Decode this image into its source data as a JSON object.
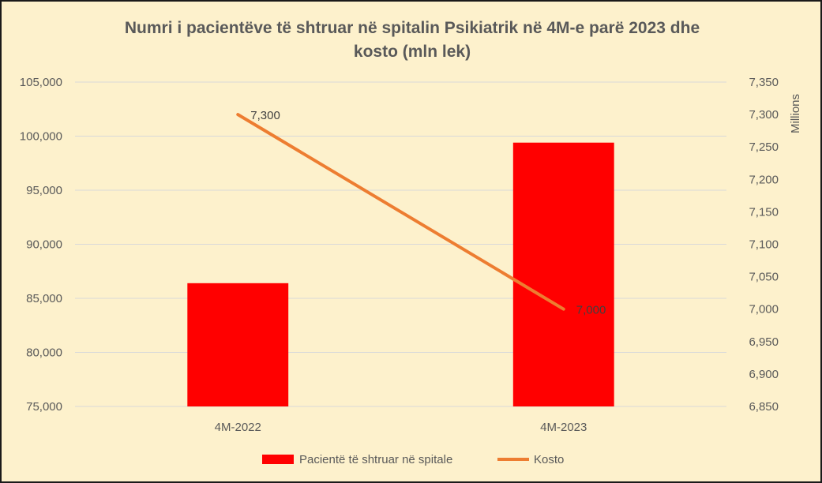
{
  "chart_data": {
    "type": "bar+line",
    "title_lines": [
      "Numri i pacientëve të shtruar në spitalin Psikiatrik në 4M-e parë 2023 dhe",
      "kosto (mln lek)"
    ],
    "categories": [
      "4M-2022",
      "4M-2023"
    ],
    "series": [
      {
        "name": "Pacientë të shtruar në spitale",
        "type": "bar",
        "axis": "left",
        "color": "#ff0000",
        "values": [
          86400,
          99400
        ]
      },
      {
        "name": "Kosto",
        "type": "line",
        "axis": "right",
        "color": "#ed7d31",
        "values": [
          7300,
          7000
        ],
        "data_labels": [
          "7,300",
          "7,000"
        ]
      }
    ],
    "y_left": {
      "min": 75000,
      "max": 105000,
      "ticks": [
        75000,
        80000,
        85000,
        90000,
        95000,
        100000,
        105000
      ],
      "tick_labels": [
        "75,000",
        "80,000",
        "85,000",
        "90,000",
        "95,000",
        "100,000",
        "105,000"
      ]
    },
    "y_right": {
      "min": 6850,
      "max": 7350,
      "label": "Millions",
      "ticks": [
        6850,
        6900,
        6950,
        7000,
        7050,
        7100,
        7150,
        7200,
        7250,
        7300,
        7350
      ],
      "tick_labels": [
        "6,850",
        "6,900",
        "6,950",
        "7,000",
        "7,050",
        "7,100",
        "7,150",
        "7,200",
        "7,250",
        "7,300",
        "7,350"
      ]
    },
    "grid": true,
    "legend_position": "bottom",
    "background_color": "#fdf1cc"
  }
}
